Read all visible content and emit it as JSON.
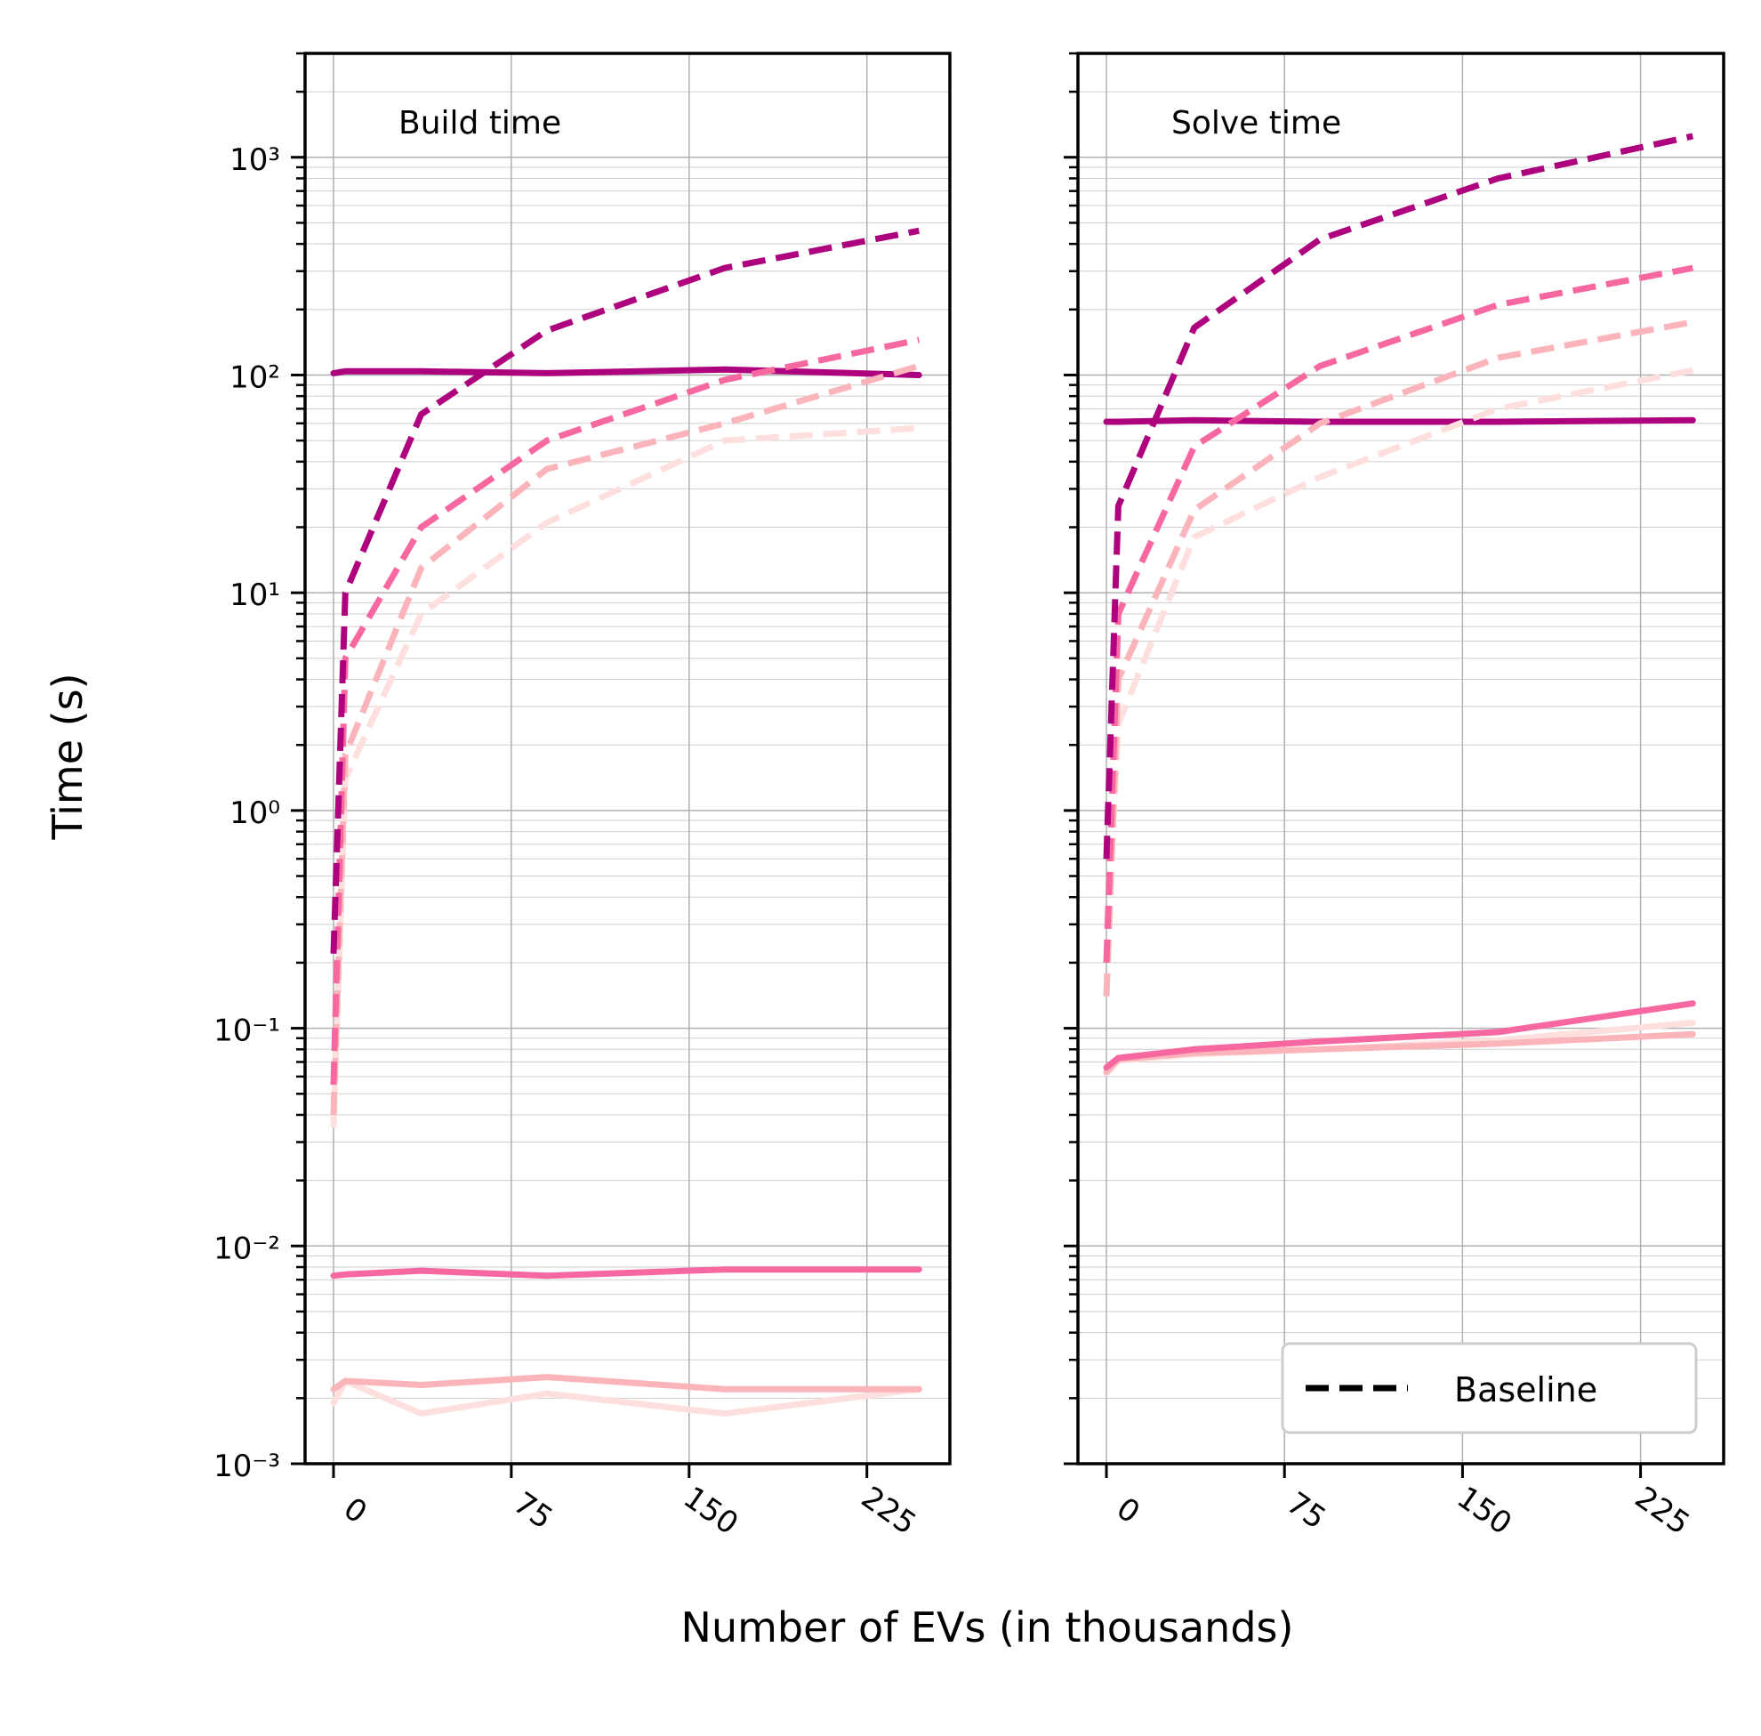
{
  "figure": {
    "ylabel": "Time (s)",
    "xlabel": "Number of EVs (in thousands)"
  },
  "legend": {
    "entry": "Baseline",
    "placement": "lower-right of right panel"
  },
  "colors": {
    "c1": "#fde0dd",
    "c2": "#fbb4b9",
    "c3": "#f768a1",
    "c4": "#ae017e"
  },
  "chart_data": [
    {
      "type": "line",
      "title": "Build time",
      "xlabel": "Number of EVs (in thousands)",
      "ylabel": "Time (s)",
      "yscale": "log",
      "ylim": [
        0.001,
        3000
      ],
      "xlim": [
        -12,
        260
      ],
      "xticks": [
        "0",
        "75",
        "150",
        "225"
      ],
      "yticks": [
        "10^-3",
        "10^-2",
        "10^-1",
        "10^0",
        "10^1",
        "10^2",
        "10^3"
      ],
      "grid": true,
      "series": [
        {
          "color": "#fde0dd",
          "style": "solid",
          "x": [
            0,
            5,
            37,
            90,
            165,
            247
          ],
          "values": [
            0.0019,
            0.0024,
            0.0017,
            0.0021,
            0.0017,
            0.0022
          ]
        },
        {
          "color": "#fbb4b9",
          "style": "solid",
          "x": [
            0,
            5,
            37,
            90,
            165,
            247
          ],
          "values": [
            0.0022,
            0.0024,
            0.0023,
            0.0025,
            0.0022,
            0.0022
          ]
        },
        {
          "color": "#f768a1",
          "style": "solid",
          "x": [
            0,
            5,
            37,
            90,
            165,
            247
          ],
          "values": [
            0.0073,
            0.0074,
            0.0077,
            0.0073,
            0.0078,
            0.0078
          ]
        },
        {
          "color": "#ae017e",
          "style": "solid",
          "x": [
            0,
            5,
            37,
            90,
            165,
            247
          ],
          "values": [
            102,
            104,
            104,
            102,
            106,
            100
          ]
        },
        {
          "color": "#fde0dd",
          "style": "dashed",
          "x": [
            0,
            5,
            37,
            90,
            165,
            247
          ],
          "values": [
            0.035,
            1.4,
            8,
            21,
            50,
            57
          ]
        },
        {
          "color": "#fbb4b9",
          "style": "dashed",
          "x": [
            0,
            5,
            37,
            90,
            165,
            247
          ],
          "values": [
            0.04,
            1.8,
            13,
            37,
            60,
            110
          ]
        },
        {
          "color": "#f768a1",
          "style": "dashed",
          "x": [
            0,
            5,
            37,
            90,
            165,
            247
          ],
          "values": [
            0.055,
            5,
            20,
            50,
            95,
            145
          ]
        },
        {
          "color": "#ae017e",
          "style": "dashed",
          "x": [
            0,
            5,
            37,
            90,
            165,
            247
          ],
          "values": [
            0.22,
            10,
            66,
            160,
            310,
            460
          ]
        }
      ]
    },
    {
      "type": "line",
      "title": "Solve time",
      "xlabel": "Number of EVs (in thousands)",
      "ylabel": "Time (s)",
      "yscale": "log",
      "ylim": [
        0.001,
        3000
      ],
      "xlim": [
        -12,
        260
      ],
      "xticks": [
        "0",
        "75",
        "150",
        "225"
      ],
      "yticks": [
        "10^-3",
        "10^-2",
        "10^-1",
        "10^0",
        "10^1",
        "10^2",
        "10^3"
      ],
      "grid": true,
      "series": [
        {
          "color": "#fde0dd",
          "style": "solid",
          "x": [
            0,
            5,
            37,
            90,
            165,
            247
          ],
          "values": [
            0.062,
            0.071,
            0.076,
            0.08,
            0.088,
            0.106
          ]
        },
        {
          "color": "#fbb4b9",
          "style": "solid",
          "x": [
            0,
            5,
            37,
            90,
            165,
            247
          ],
          "values": [
            0.063,
            0.072,
            0.077,
            0.08,
            0.085,
            0.094
          ]
        },
        {
          "color": "#f768a1",
          "style": "solid",
          "x": [
            0,
            5,
            37,
            90,
            165,
            247
          ],
          "values": [
            0.066,
            0.073,
            0.08,
            0.087,
            0.096,
            0.13
          ]
        },
        {
          "color": "#ae017e",
          "style": "solid",
          "x": [
            0,
            5,
            37,
            90,
            165,
            247
          ],
          "values": [
            61,
            61,
            62,
            61,
            61,
            62
          ]
        },
        {
          "color": "#fde0dd",
          "style": "dashed",
          "x": [
            0,
            5,
            37,
            90,
            165,
            247
          ],
          "values": [
            0.2,
            2.5,
            18,
            34,
            70,
            105
          ]
        },
        {
          "color": "#fbb4b9",
          "style": "dashed",
          "x": [
            0,
            5,
            37,
            90,
            165,
            247
          ],
          "values": [
            0.14,
            4,
            24,
            60,
            120,
            175
          ]
        },
        {
          "color": "#f768a1",
          "style": "dashed",
          "x": [
            0,
            5,
            37,
            90,
            165,
            247
          ],
          "values": [
            0.2,
            8,
            47,
            110,
            210,
            310
          ]
        },
        {
          "color": "#ae017e",
          "style": "dashed",
          "x": [
            0,
            5,
            37,
            90,
            165,
            247
          ],
          "values": [
            0.6,
            25,
            165,
            420,
            800,
            1250
          ]
        }
      ]
    }
  ]
}
